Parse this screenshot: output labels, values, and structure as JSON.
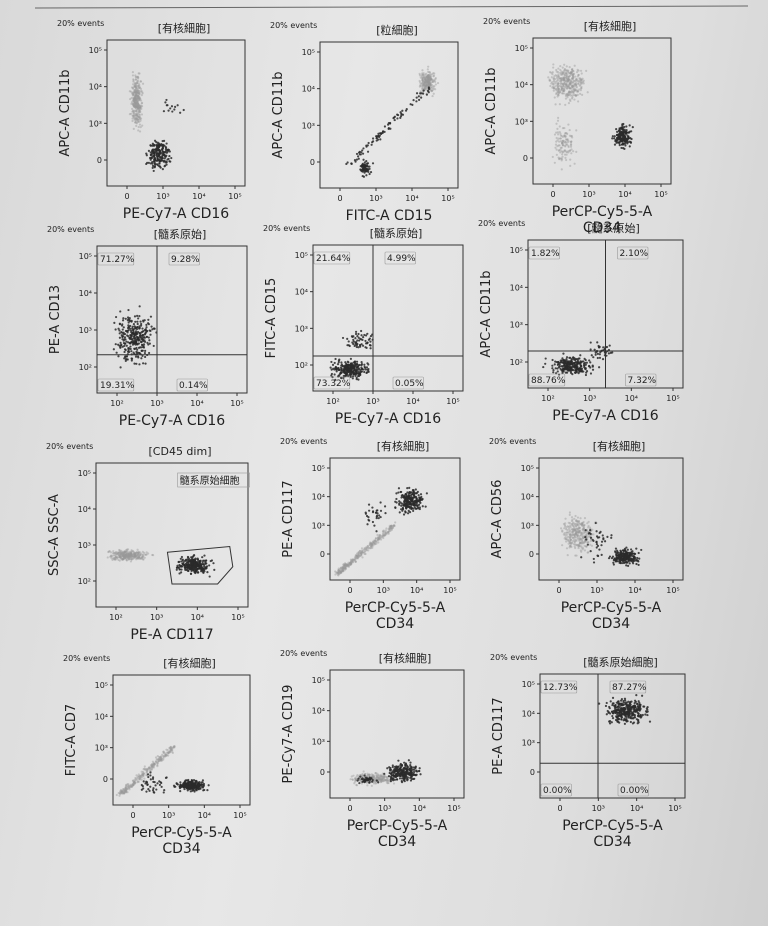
{
  "page": {
    "background": "#e2e2e2",
    "axis_color": "#333333",
    "dot_dark": "#2a2a2a",
    "dot_light": "#9a9a9a"
  },
  "chart_data": [
    {
      "type": "scatter",
      "events_label": "20% events",
      "title": "[有核細胞]",
      "xlabel": "PE-Cy7-A CD16",
      "ylabel": "APC-A CD11b",
      "x_ticks": [
        "0",
        "10³",
        "10⁴",
        "10⁵"
      ],
      "y_ticks": [
        "0",
        "10³",
        "10⁴",
        "10⁵"
      ],
      "clusters": [
        {
          "color": "light",
          "x": [
            0.15,
            0.28
          ],
          "y": [
            0.3,
            0.85
          ],
          "n": 320
        },
        {
          "color": "dark",
          "x": [
            0.25,
            0.5
          ],
          "y": [
            0.05,
            0.38
          ],
          "n": 200
        },
        {
          "color": "dark",
          "x": [
            0.35,
            0.6
          ],
          "y": [
            0.4,
            0.65
          ],
          "n": 14
        }
      ]
    },
    {
      "type": "scatter",
      "events_label": "20% events",
      "title": "[粒細胞]",
      "xlabel": "FITC-A CD15",
      "ylabel": "APC-A CD11b",
      "x_ticks": [
        "0",
        "10³",
        "10⁴",
        "10⁵"
      ],
      "y_ticks": [
        "0",
        "10³",
        "10⁴",
        "10⁵"
      ],
      "clusters": [
        {
          "color": "light",
          "x": [
            0.68,
            0.88
          ],
          "y": [
            0.6,
            0.85
          ],
          "n": 240
        },
        {
          "color": "dark",
          "x": [
            0.2,
            0.8
          ],
          "y": [
            0.15,
            0.7
          ],
          "n": 90,
          "diag": true
        },
        {
          "color": "dark",
          "x": [
            0.25,
            0.4
          ],
          "y": [
            0.05,
            0.22
          ],
          "n": 60
        }
      ]
    },
    {
      "type": "scatter",
      "events_label": "20% events",
      "title": "[有核細胞]",
      "xlabel": "PerCP-Cy5-5-A",
      "xlabel2": "CD34",
      "ylabel": "APC-A CD11b",
      "x_ticks": [
        "0",
        "10³",
        "10⁴",
        "10⁵"
      ],
      "y_ticks": [
        "0",
        "10³",
        "10⁴",
        "10⁵"
      ],
      "clusters": [
        {
          "color": "light",
          "x": [
            0.05,
            0.45
          ],
          "y": [
            0.5,
            0.88
          ],
          "n": 360
        },
        {
          "color": "light",
          "x": [
            0.1,
            0.35
          ],
          "y": [
            0.05,
            0.5
          ],
          "n": 120
        },
        {
          "color": "dark",
          "x": [
            0.55,
            0.75
          ],
          "y": [
            0.2,
            0.45
          ],
          "n": 170
        }
      ]
    },
    {
      "type": "scatter",
      "events_label": "20% events",
      "title": "[髓系原始]",
      "xlabel": "PE-Cy7-A CD16",
      "ylabel": "PE-A CD13",
      "x_ticks": [
        "10²",
        "10³",
        "10⁴",
        "10⁵"
      ],
      "y_ticks": [
        "10²",
        "10³",
        "10⁴",
        "10⁵"
      ],
      "quadrants": [
        "71.27%",
        "9.28%",
        "19.31%",
        "0.14%"
      ],
      "gate_x": 0.4,
      "gate_y": 0.26,
      "clusters": [
        {
          "color": "dark",
          "x": [
            0.05,
            0.45
          ],
          "y": [
            0.1,
            0.65
          ],
          "n": 300
        }
      ]
    },
    {
      "type": "scatter",
      "events_label": "20% events",
      "title": "[髓系原始]",
      "xlabel": "PE-Cy7-A CD16",
      "ylabel": "FITC-A CD15",
      "x_ticks": [
        "10²",
        "10³",
        "10⁴",
        "10⁵"
      ],
      "y_ticks": [
        "10²",
        "10³",
        "10⁴",
        "10⁵"
      ],
      "quadrants": [
        "21.64%",
        "4.99%",
        "73.32%",
        "0.05%"
      ],
      "gate_x": 0.4,
      "gate_y": 0.24,
      "clusters": [
        {
          "color": "dark",
          "x": [
            0.05,
            0.45
          ],
          "y": [
            0.05,
            0.25
          ],
          "n": 260
        },
        {
          "color": "dark",
          "x": [
            0.15,
            0.48
          ],
          "y": [
            0.25,
            0.45
          ],
          "n": 60
        }
      ]
    },
    {
      "type": "scatter",
      "events_label": "20% events",
      "title": "[髓系原始]",
      "xlabel": "PE-Cy7-A CD16",
      "ylabel": "APC-A CD11b",
      "x_ticks": [
        "10²",
        "10³",
        "10⁴",
        "10⁵"
      ],
      "y_ticks": [
        "10²",
        "10³",
        "10⁴",
        "10⁵"
      ],
      "quadrants": [
        "1.82%",
        "2.10%",
        "88.76%",
        "7.32%"
      ],
      "gate_x": 0.5,
      "gate_y": 0.25,
      "clusters": [
        {
          "color": "dark",
          "x": [
            0.05,
            0.5
          ],
          "y": [
            0.05,
            0.25
          ],
          "n": 240
        },
        {
          "color": "dark",
          "x": [
            0.35,
            0.6
          ],
          "y": [
            0.15,
            0.35
          ],
          "n": 40
        }
      ]
    },
    {
      "type": "scatter",
      "events_label": "20% events",
      "title": "[CD45 dim]",
      "xlabel": "PE-A CD117",
      "ylabel": "SSC-A SSC-A",
      "x_ticks": [
        "10²",
        "10³",
        "10⁴",
        "10⁵"
      ],
      "y_ticks": [
        "10²",
        "10³",
        "10⁴",
        "10⁵"
      ],
      "gate_label": "髓系原始細胞",
      "clusters": [
        {
          "color": "light",
          "x": [
            0.0,
            0.42
          ],
          "y": [
            0.3,
            0.42
          ],
          "n": 300
        },
        {
          "color": "dark",
          "x": [
            0.48,
            0.8
          ],
          "y": [
            0.2,
            0.38
          ],
          "n": 280
        }
      ]
    },
    {
      "type": "scatter",
      "events_label": "20% events",
      "title": "[有核細胞]",
      "xlabel": "PerCP-Cy5-5-A",
      "xlabel2": "CD34",
      "ylabel": "PE-A CD117",
      "x_ticks": [
        "0",
        "10³",
        "10⁴",
        "10⁵"
      ],
      "y_ticks": [
        "0",
        "10³",
        "10⁴",
        "10⁵"
      ],
      "clusters": [
        {
          "color": "light",
          "x": [
            0.05,
            0.5
          ],
          "y": [
            0.05,
            0.45
          ],
          "n": 300,
          "diag": true
        },
        {
          "color": "dark",
          "x": [
            0.45,
            0.78
          ],
          "y": [
            0.5,
            0.8
          ],
          "n": 230
        },
        {
          "color": "dark",
          "x": [
            0.2,
            0.5
          ],
          "y": [
            0.35,
            0.7
          ],
          "n": 30
        }
      ]
    },
    {
      "type": "scatter",
      "events_label": "20% events",
      "title": "[有核細胞]",
      "xlabel": "PerCP-Cy5-5-A",
      "xlabel2": "CD34",
      "ylabel": "APC-A CD56",
      "x_ticks": [
        "0",
        "10³",
        "10⁴",
        "10⁵"
      ],
      "y_ticks": [
        "0",
        "10³",
        "10⁴",
        "10⁵"
      ],
      "clusters": [
        {
          "color": "light",
          "x": [
            0.1,
            0.45
          ],
          "y": [
            0.15,
            0.6
          ],
          "n": 300
        },
        {
          "color": "dark",
          "x": [
            0.45,
            0.75
          ],
          "y": [
            0.08,
            0.3
          ],
          "n": 220
        },
        {
          "color": "dark",
          "x": [
            0.2,
            0.6
          ],
          "y": [
            0.05,
            0.55
          ],
          "n": 40
        }
      ]
    },
    {
      "type": "scatter",
      "events_label": "20% events",
      "title": "[有核細胞]",
      "xlabel": "PerCP-Cy5-5-A",
      "xlabel2": "CD34",
      "ylabel": "FITC-A CD7",
      "x_ticks": [
        "0",
        "10³",
        "10⁴",
        "10⁵"
      ],
      "y_ticks": [
        "0",
        "10³",
        "10⁴",
        "10⁵"
      ],
      "clusters": [
        {
          "color": "light",
          "x": [
            0.05,
            0.45
          ],
          "y": [
            0.08,
            0.45
          ],
          "n": 260,
          "diag": true
        },
        {
          "color": "dark",
          "x": [
            0.4,
            0.75
          ],
          "y": [
            0.08,
            0.22
          ],
          "n": 220
        },
        {
          "color": "dark",
          "x": [
            0.15,
            0.45
          ],
          "y": [
            0.05,
            0.3
          ],
          "n": 40
        }
      ]
    },
    {
      "type": "scatter",
      "events_label": "20% events",
      "title": "[有核細胞]",
      "xlabel": "PerCP-Cy5-5-A",
      "xlabel2": "CD34",
      "ylabel": "PE-Cy7-A CD19",
      "x_ticks": [
        "0",
        "10³",
        "10⁴",
        "10⁵"
      ],
      "y_ticks": [
        "0",
        "10³",
        "10⁴",
        "10⁵"
      ],
      "clusters": [
        {
          "color": "light",
          "x": [
            0.05,
            0.6
          ],
          "y": [
            0.08,
            0.22
          ],
          "n": 260
        },
        {
          "color": "dark",
          "x": [
            0.35,
            0.75
          ],
          "y": [
            0.08,
            0.32
          ],
          "n": 240
        },
        {
          "color": "dark",
          "x": [
            0.15,
            0.4
          ],
          "y": [
            0.08,
            0.2
          ],
          "n": 40
        }
      ]
    },
    {
      "type": "scatter",
      "events_label": "20% events",
      "title": "[髓系原始細胞]",
      "xlabel": "PerCP-Cy5-5-A",
      "xlabel2": "CD34",
      "ylabel": "PE-A CD117",
      "x_ticks": [
        "0",
        "10³",
        "10⁴",
        "10⁵"
      ],
      "y_ticks": [
        "0",
        "10³",
        "10⁴",
        "10⁵"
      ],
      "quadrants": [
        "12.73%",
        "87.27%",
        "0.00%",
        "0.00%"
      ],
      "gate_x": 0.4,
      "gate_y": 0.28,
      "clusters": [
        {
          "color": "dark",
          "x": [
            0.38,
            0.82
          ],
          "y": [
            0.55,
            0.85
          ],
          "n": 320
        }
      ]
    }
  ]
}
